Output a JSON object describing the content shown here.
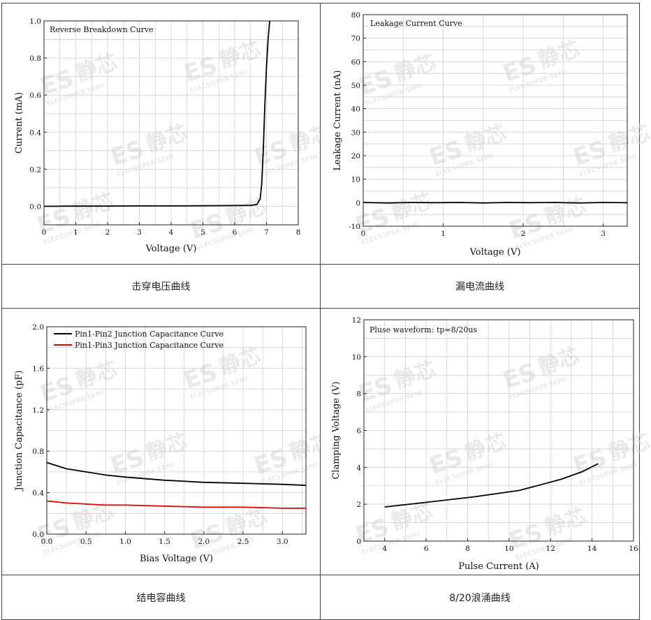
{
  "captions": [
    "击穿电压曲线",
    "漏电流曲线",
    "结电容曲线",
    "8/20浪涌曲线"
  ],
  "watermark": {
    "logo": "ES",
    "brand": "ELECSUPER SEMI",
    "cn": "静芯"
  },
  "chart_data": [
    {
      "type": "line",
      "title": "Reverse Breakdown Curve",
      "xlabel": "Voltage (V)",
      "ylabel": "Current (mA)",
      "xlim": [
        0,
        8
      ],
      "ylim": [
        -0.1,
        1.0
      ],
      "xticks": [
        0,
        1,
        2,
        3,
        4,
        5,
        6,
        7,
        8
      ],
      "yticks": [
        0.0,
        0.2,
        0.4,
        0.6,
        0.8,
        1.0
      ],
      "xtick_labels": [
        "0",
        "1",
        "2",
        "3",
        "4",
        "5",
        "6",
        "7",
        "8"
      ],
      "ytick_labels": [
        "0.0",
        "0.2",
        "0.4",
        "0.6",
        "0.8",
        "1.0"
      ],
      "grid": true,
      "series": [
        {
          "color": "#000000",
          "x": [
            0,
            1,
            2,
            3,
            4,
            5,
            6,
            6.5,
            6.7,
            6.8,
            6.85,
            6.9,
            6.95,
            7.0,
            7.05,
            7.1
          ],
          "y": [
            0,
            0.001,
            0.001,
            0.002,
            0.002,
            0.003,
            0.004,
            0.005,
            0.01,
            0.04,
            0.12,
            0.3,
            0.55,
            0.75,
            0.9,
            1.0
          ]
        }
      ]
    },
    {
      "type": "line",
      "title": "Leakage Current Curve",
      "xlabel": "Voltage (V)",
      "ylabel": "Leakage Current (nA)",
      "xlim": [
        0,
        3.3
      ],
      "ylim": [
        -10,
        80
      ],
      "xticks": [
        0,
        1,
        2,
        3
      ],
      "yticks": [
        -10,
        0,
        10,
        20,
        30,
        40,
        50,
        60,
        70,
        80
      ],
      "xtick_labels": [
        "0",
        "1",
        "2",
        "3"
      ],
      "ytick_labels": [
        "-10",
        "0",
        "10",
        "20",
        "30",
        "40",
        "50",
        "60",
        "70",
        "80"
      ],
      "grid": true,
      "series": [
        {
          "color": "#000000",
          "x": [
            0,
            0.3,
            0.6,
            0.9,
            1.2,
            1.5,
            1.8,
            2.1,
            2.4,
            2.7,
            3.0,
            3.3
          ],
          "y": [
            0.1,
            -0.1,
            0.1,
            0.0,
            0.1,
            -0.1,
            0.1,
            0.0,
            0.1,
            -0.1,
            0.1,
            0.0
          ]
        }
      ]
    },
    {
      "type": "line",
      "title": "",
      "xlabel": "Bias Voltage (V)",
      "ylabel": "Junction Capacitance (pF)",
      "xlim": [
        0,
        3.3
      ],
      "ylim": [
        0,
        2.0
      ],
      "xticks": [
        0,
        0.5,
        1.0,
        1.5,
        2.0,
        2.5,
        3.0
      ],
      "yticks": [
        0,
        0.4,
        0.8,
        1.2,
        1.6,
        2.0
      ],
      "xtick_labels": [
        "0.0",
        "0.5",
        "1.0",
        "1.5",
        "2.0",
        "2.5",
        "3.0"
      ],
      "ytick_labels": [
        "0.0",
        "0.4",
        "0.8",
        "1.2",
        "1.6",
        "2.0"
      ],
      "grid": true,
      "legend": "top-left",
      "series": [
        {
          "name": "Pin1-Pin2 Junction Capacitance Curve",
          "color": "#000000",
          "x": [
            0,
            0.25,
            0.5,
            0.75,
            1.0,
            1.5,
            2.0,
            2.5,
            3.0,
            3.3
          ],
          "y": [
            0.69,
            0.63,
            0.6,
            0.57,
            0.55,
            0.52,
            0.5,
            0.49,
            0.48,
            0.47
          ]
        },
        {
          "name": "Pin1-Pin3 Junction Capacitance Curve",
          "color": "#e00000",
          "x": [
            0,
            0.25,
            0.5,
            0.75,
            1.0,
            1.5,
            2.0,
            2.5,
            3.0,
            3.3
          ],
          "y": [
            0.32,
            0.3,
            0.29,
            0.28,
            0.28,
            0.27,
            0.26,
            0.26,
            0.25,
            0.25
          ]
        }
      ]
    },
    {
      "type": "line",
      "title": "Pluse waveform: tp=8/20us",
      "xlabel": "Pulse Current (A)",
      "ylabel": "Clamping Voltage (V)",
      "xlim": [
        3,
        16
      ],
      "ylim": [
        0,
        12
      ],
      "xticks": [
        4,
        6,
        8,
        10,
        12,
        14,
        16
      ],
      "yticks": [
        0,
        2,
        4,
        6,
        8,
        10,
        12
      ],
      "xtick_labels": [
        "4",
        "6",
        "8",
        "10",
        "12",
        "14",
        "16"
      ],
      "ytick_labels": [
        "0",
        "2",
        "4",
        "6",
        "8",
        "10",
        "12"
      ],
      "grid": true,
      "series": [
        {
          "color": "#000000",
          "x": [
            4.0,
            6.0,
            8.3,
            10.5,
            12.5,
            13.5,
            14.3
          ],
          "y": [
            1.85,
            2.1,
            2.4,
            2.75,
            3.35,
            3.75,
            4.2
          ]
        }
      ]
    }
  ]
}
